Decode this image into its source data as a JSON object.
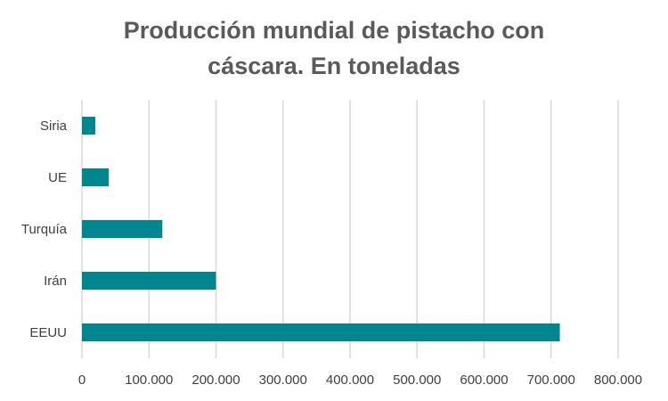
{
  "chart_data": {
    "type": "bar",
    "orientation": "horizontal",
    "title_lines": [
      "Producción mundial de pistacho con",
      "cáscara. En toneladas"
    ],
    "categories": [
      "Siria",
      "UE",
      "Turquía",
      "Irán",
      "EEUU"
    ],
    "values": [
      20000,
      40000,
      120000,
      200000,
      713000
    ],
    "xlim": [
      0,
      800000
    ],
    "xticks": [
      0,
      100000,
      200000,
      300000,
      400000,
      500000,
      600000,
      700000,
      800000
    ],
    "xtick_labels": [
      "0",
      "100.000",
      "200.000",
      "300.000",
      "400.000",
      "500.000",
      "600.000",
      "700.000",
      "800.000"
    ],
    "grid": true,
    "colors": {
      "bar": "#00868f",
      "grid": "#d9d9d9",
      "title": "#5a5a5a",
      "label": "#404040"
    }
  }
}
